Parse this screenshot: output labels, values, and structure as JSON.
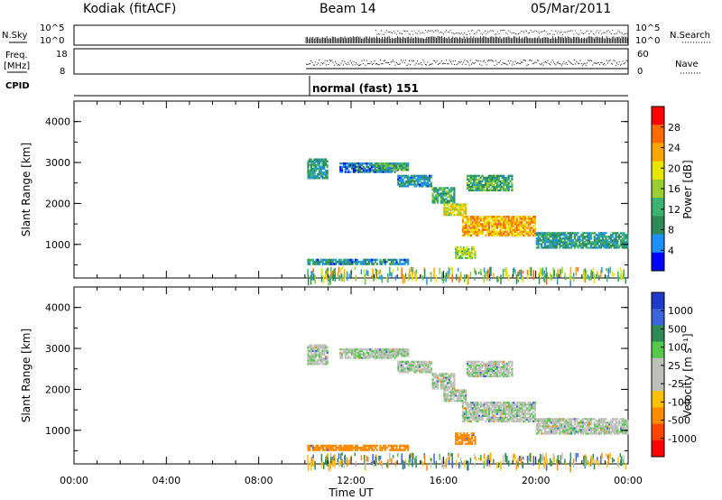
{
  "header": {
    "station": "Kodiak (fitACF)",
    "beam": "Beam 14",
    "date": "05/Mar/2011"
  },
  "status_panel": {
    "nsky_label": "N.Sky",
    "nsearch_label": "N.Search",
    "freq_label": "Freq.",
    "freq_unit": "[MHz]",
    "nave_label": "Nave",
    "cpid_label": "CPID",
    "noise_ticks": [
      "10^5",
      "10^0"
    ],
    "freq_ticks": [
      "18",
      "8"
    ],
    "nave_ticks": [
      "60",
      "0"
    ],
    "cpid_value": "normal (fast) 151"
  },
  "time_axis": {
    "label": "Time UT",
    "ticks": [
      "00:00",
      "04:00",
      "08:00",
      "12:00",
      "16:00",
      "20:00",
      "00:00"
    ]
  },
  "chart_data": [
    {
      "type": "heatmap",
      "panel": "power",
      "xlabel": "Time UT",
      "ylabel": "Slant Range [km]",
      "xlim_hours": [
        0,
        24
      ],
      "ylim": [
        180,
        4500
      ],
      "yticks": [
        "1000",
        "2000",
        "3000",
        "4000"
      ],
      "colorbar_label": "Power [dB]",
      "colorbar_ticks": [
        "28",
        "24",
        "20",
        "16",
        "12",
        "8",
        "4"
      ],
      "colorbar_colors": [
        "#ff0000",
        "#ff6a00",
        "#ffa500",
        "#e6e600",
        "#9acd32",
        "#3cb371",
        "#2e8b57",
        "#1e90ff",
        "#0000ff"
      ],
      "regions": [
        {
          "t0": 10.1,
          "t1": 11.0,
          "r0": 2600,
          "r1": 3100,
          "level": 10
        },
        {
          "t0": 11.5,
          "t1": 14.0,
          "r0": 2750,
          "r1": 3000,
          "level": 6
        },
        {
          "t0": 13.0,
          "t1": 14.5,
          "r0": 2800,
          "r1": 3000,
          "level": 12
        },
        {
          "t0": 14.0,
          "t1": 15.5,
          "r0": 2400,
          "r1": 2700,
          "level": 8
        },
        {
          "t0": 15.5,
          "t1": 16.5,
          "r0": 2000,
          "r1": 2400,
          "level": 12
        },
        {
          "t0": 16.0,
          "t1": 17.0,
          "r0": 1700,
          "r1": 2000,
          "level": 20
        },
        {
          "t0": 16.8,
          "t1": 20.0,
          "r0": 1200,
          "r1": 1700,
          "level": 24
        },
        {
          "t0": 20.0,
          "t1": 24.0,
          "r0": 900,
          "r1": 1300,
          "level": 10
        },
        {
          "t0": 16.5,
          "t1": 17.4,
          "r0": 650,
          "r1": 950,
          "level": 18
        },
        {
          "t0": 17.0,
          "t1": 19.0,
          "r0": 2300,
          "r1": 2700,
          "level": 12
        },
        {
          "t0": 10.1,
          "t1": 14.5,
          "r0": 500,
          "r1": 650,
          "level": 8
        }
      ]
    },
    {
      "type": "heatmap",
      "panel": "velocity",
      "xlabel": "Time UT",
      "ylabel": "Slant Range [km]",
      "xlim_hours": [
        0,
        24
      ],
      "ylim": [
        180,
        4500
      ],
      "yticks": [
        "1000",
        "2000",
        "3000",
        "4000"
      ],
      "colorbar_label": "Velocity [m s⁻¹]",
      "colorbar_ticks": [
        "1000",
        "500",
        "100",
        "25",
        "-25",
        "-100",
        "-500",
        "-1000"
      ],
      "colorbar_colors": [
        "#1e3cc8",
        "#3c64dc",
        "#2e8b57",
        "#55c84b",
        "#c0c0bb",
        "#c0c0bb",
        "#ffc000",
        "#ff8c00",
        "#ff4500",
        "#ff0000"
      ],
      "regions": [
        {
          "t0": 10.1,
          "t1": 11.0,
          "r0": 2600,
          "r1": 3100,
          "level": 0
        },
        {
          "t0": 11.5,
          "t1": 14.0,
          "r0": 2750,
          "r1": 3000,
          "level": 0
        },
        {
          "t0": 13.0,
          "t1": 14.5,
          "r0": 2800,
          "r1": 3000,
          "level": 0
        },
        {
          "t0": 14.0,
          "t1": 15.5,
          "r0": 2400,
          "r1": 2700,
          "level": 0
        },
        {
          "t0": 15.5,
          "t1": 16.5,
          "r0": 2000,
          "r1": 2400,
          "level": 0
        },
        {
          "t0": 16.0,
          "t1": 17.0,
          "r0": 1700,
          "r1": 2000,
          "level": 0
        },
        {
          "t0": 16.8,
          "t1": 20.0,
          "r0": 1200,
          "r1": 1700,
          "level": 0
        },
        {
          "t0": 20.0,
          "t1": 24.0,
          "r0": 900,
          "r1": 1300,
          "level": 0
        },
        {
          "t0": 16.5,
          "t1": 17.4,
          "r0": 650,
          "r1": 950,
          "level": -200
        },
        {
          "t0": 17.0,
          "t1": 19.0,
          "r0": 2300,
          "r1": 2700,
          "level": 0
        },
        {
          "t0": 10.1,
          "t1": 14.5,
          "r0": 500,
          "r1": 650,
          "level": -150
        }
      ]
    }
  ]
}
